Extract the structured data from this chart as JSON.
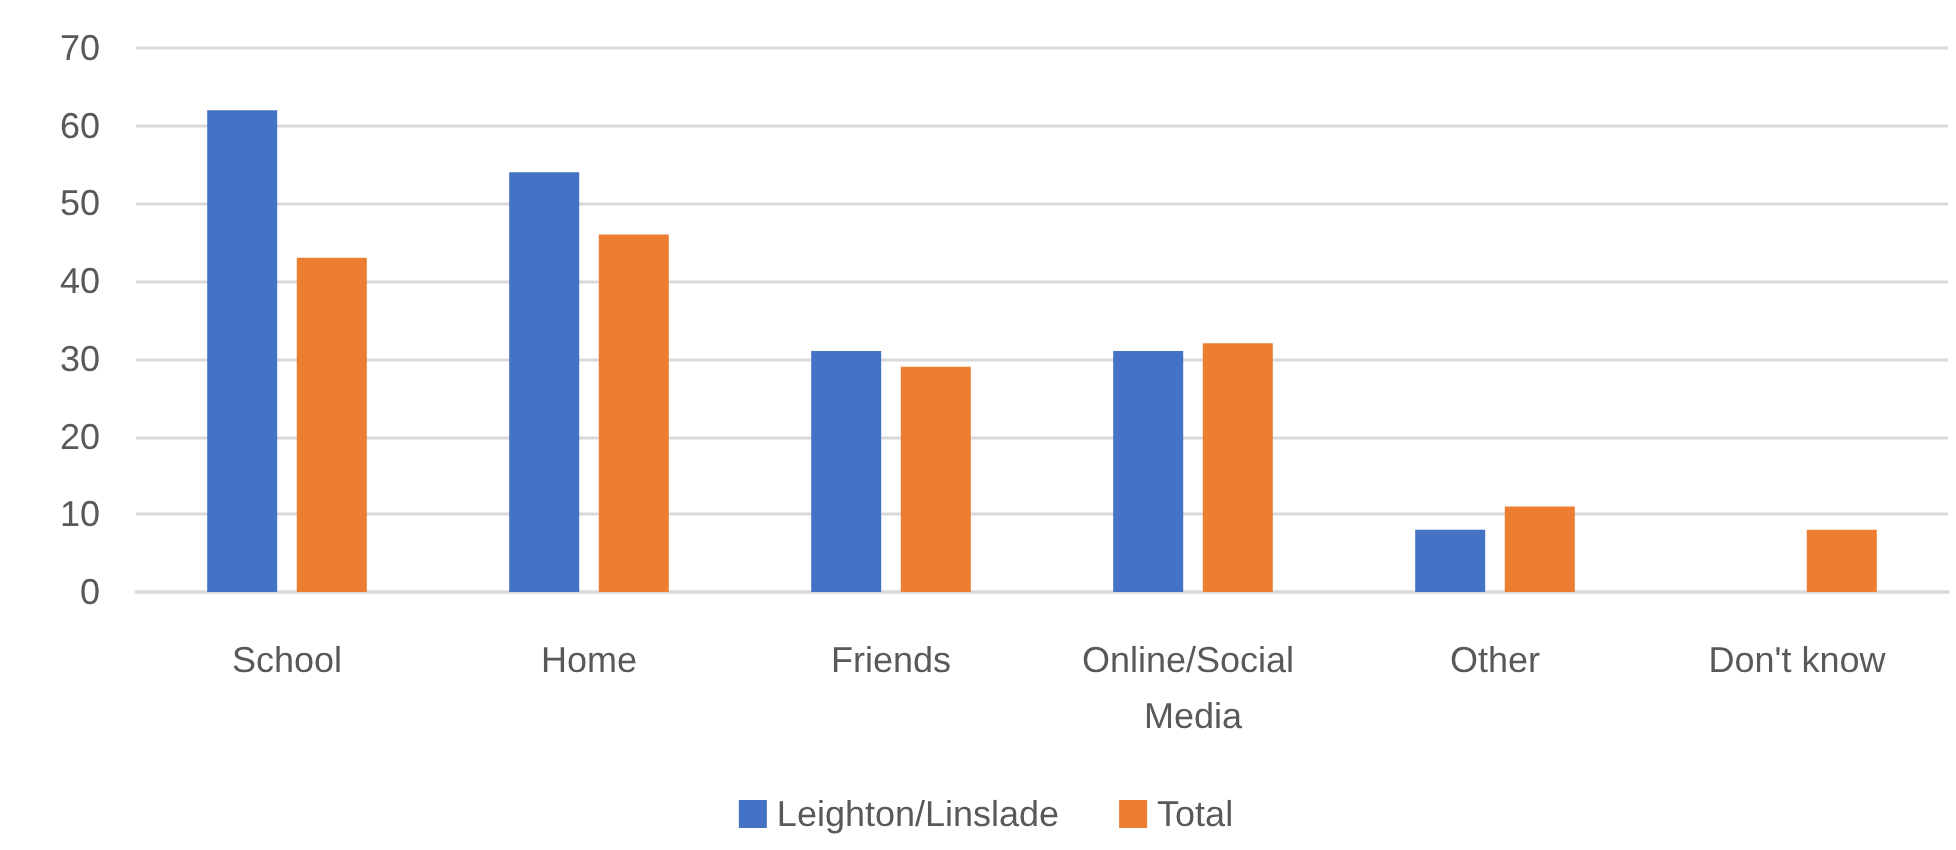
{
  "chart_data": {
    "type": "bar",
    "categories": [
      "School",
      "Home",
      "Friends",
      "Online/Social Media",
      "Other",
      "Don't know"
    ],
    "series": [
      {
        "name": "Leighton/Linslade",
        "color": "#4472c4",
        "values": [
          62,
          54,
          31,
          31,
          8,
          null
        ]
      },
      {
        "name": "Total",
        "color": "#ed7d31",
        "values": [
          43,
          46,
          29,
          32,
          11,
          8
        ]
      }
    ],
    "ylim": [
      0,
      70
    ],
    "yticks": [
      0,
      10,
      20,
      30,
      40,
      50,
      60,
      70
    ],
    "grid": "y",
    "legend": "bottom"
  }
}
